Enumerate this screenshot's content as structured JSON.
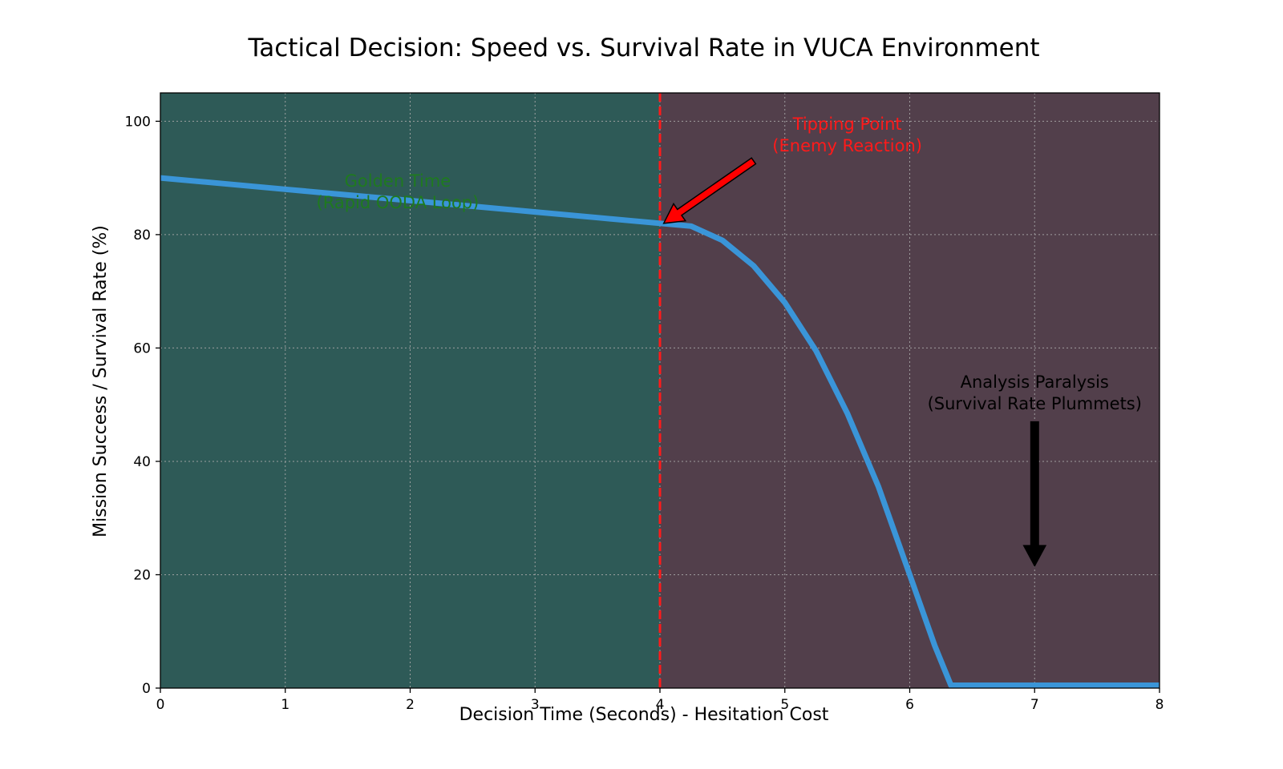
{
  "chart_data": {
    "type": "line",
    "title": "Tactical Decision: Speed vs. Survival Rate in VUCA Environment",
    "xlabel": "Decision Time (Seconds) - Hesitation Cost",
    "ylabel": "Mission Success / Survival Rate (%)",
    "xlim": [
      0,
      8
    ],
    "ylim": [
      0,
      105
    ],
    "xticks": [
      0,
      1,
      2,
      3,
      4,
      5,
      6,
      7,
      8
    ],
    "yticks": [
      0,
      20,
      40,
      60,
      80,
      100
    ],
    "grid": true,
    "series": [
      {
        "name": "Survival Rate",
        "color": "#3a95d8",
        "x": [
          0,
          0.5,
          1,
          1.5,
          2,
          2.5,
          3,
          3.5,
          4,
          4.25,
          4.5,
          4.75,
          5,
          5.25,
          5.5,
          5.75,
          6,
          6.2,
          6.33,
          6.5,
          7,
          7.5,
          8
        ],
        "y": [
          90,
          89,
          88,
          87,
          86,
          85,
          84,
          83,
          82,
          81.5,
          79,
          74.5,
          68,
          59.5,
          48.5,
          35.5,
          20,
          7.5,
          0.5,
          0.5,
          0.5,
          0.5,
          0.5
        ]
      }
    ],
    "regions": [
      {
        "name": "golden-time-region",
        "x_from": 0,
        "x_to": 4,
        "color": "#2e5a57"
      },
      {
        "name": "paralysis-region",
        "x_from": 4,
        "x_to": 8,
        "color": "#523f4b"
      }
    ],
    "vline": {
      "x": 4,
      "color": "#ff1a1a",
      "style": "dashed"
    },
    "annotations": [
      {
        "name": "golden-time",
        "lines": [
          "Golden Time",
          "(Rapid OODA Loop)"
        ],
        "x": 1.9,
        "y": 88.5,
        "color": "#1f7a1f"
      },
      {
        "name": "tipping-point",
        "lines": [
          "Tipping Point",
          "(Enemy Reaction)"
        ],
        "x": 5.5,
        "y": 98.5,
        "color": "#ff1a1a",
        "arrow_from": [
          4.75,
          93
        ],
        "arrow_to": [
          4.03,
          82
        ],
        "arrow_color": "#ff0000"
      },
      {
        "name": "analysis-paralysis",
        "lines": [
          "Analysis Paralysis",
          "(Survival Rate Plummets)"
        ],
        "x": 7,
        "y": 53,
        "color": "#000000",
        "arrow_from": [
          7,
          47
        ],
        "arrow_to": [
          7,
          21.5
        ],
        "arrow_color": "#000000"
      }
    ]
  }
}
